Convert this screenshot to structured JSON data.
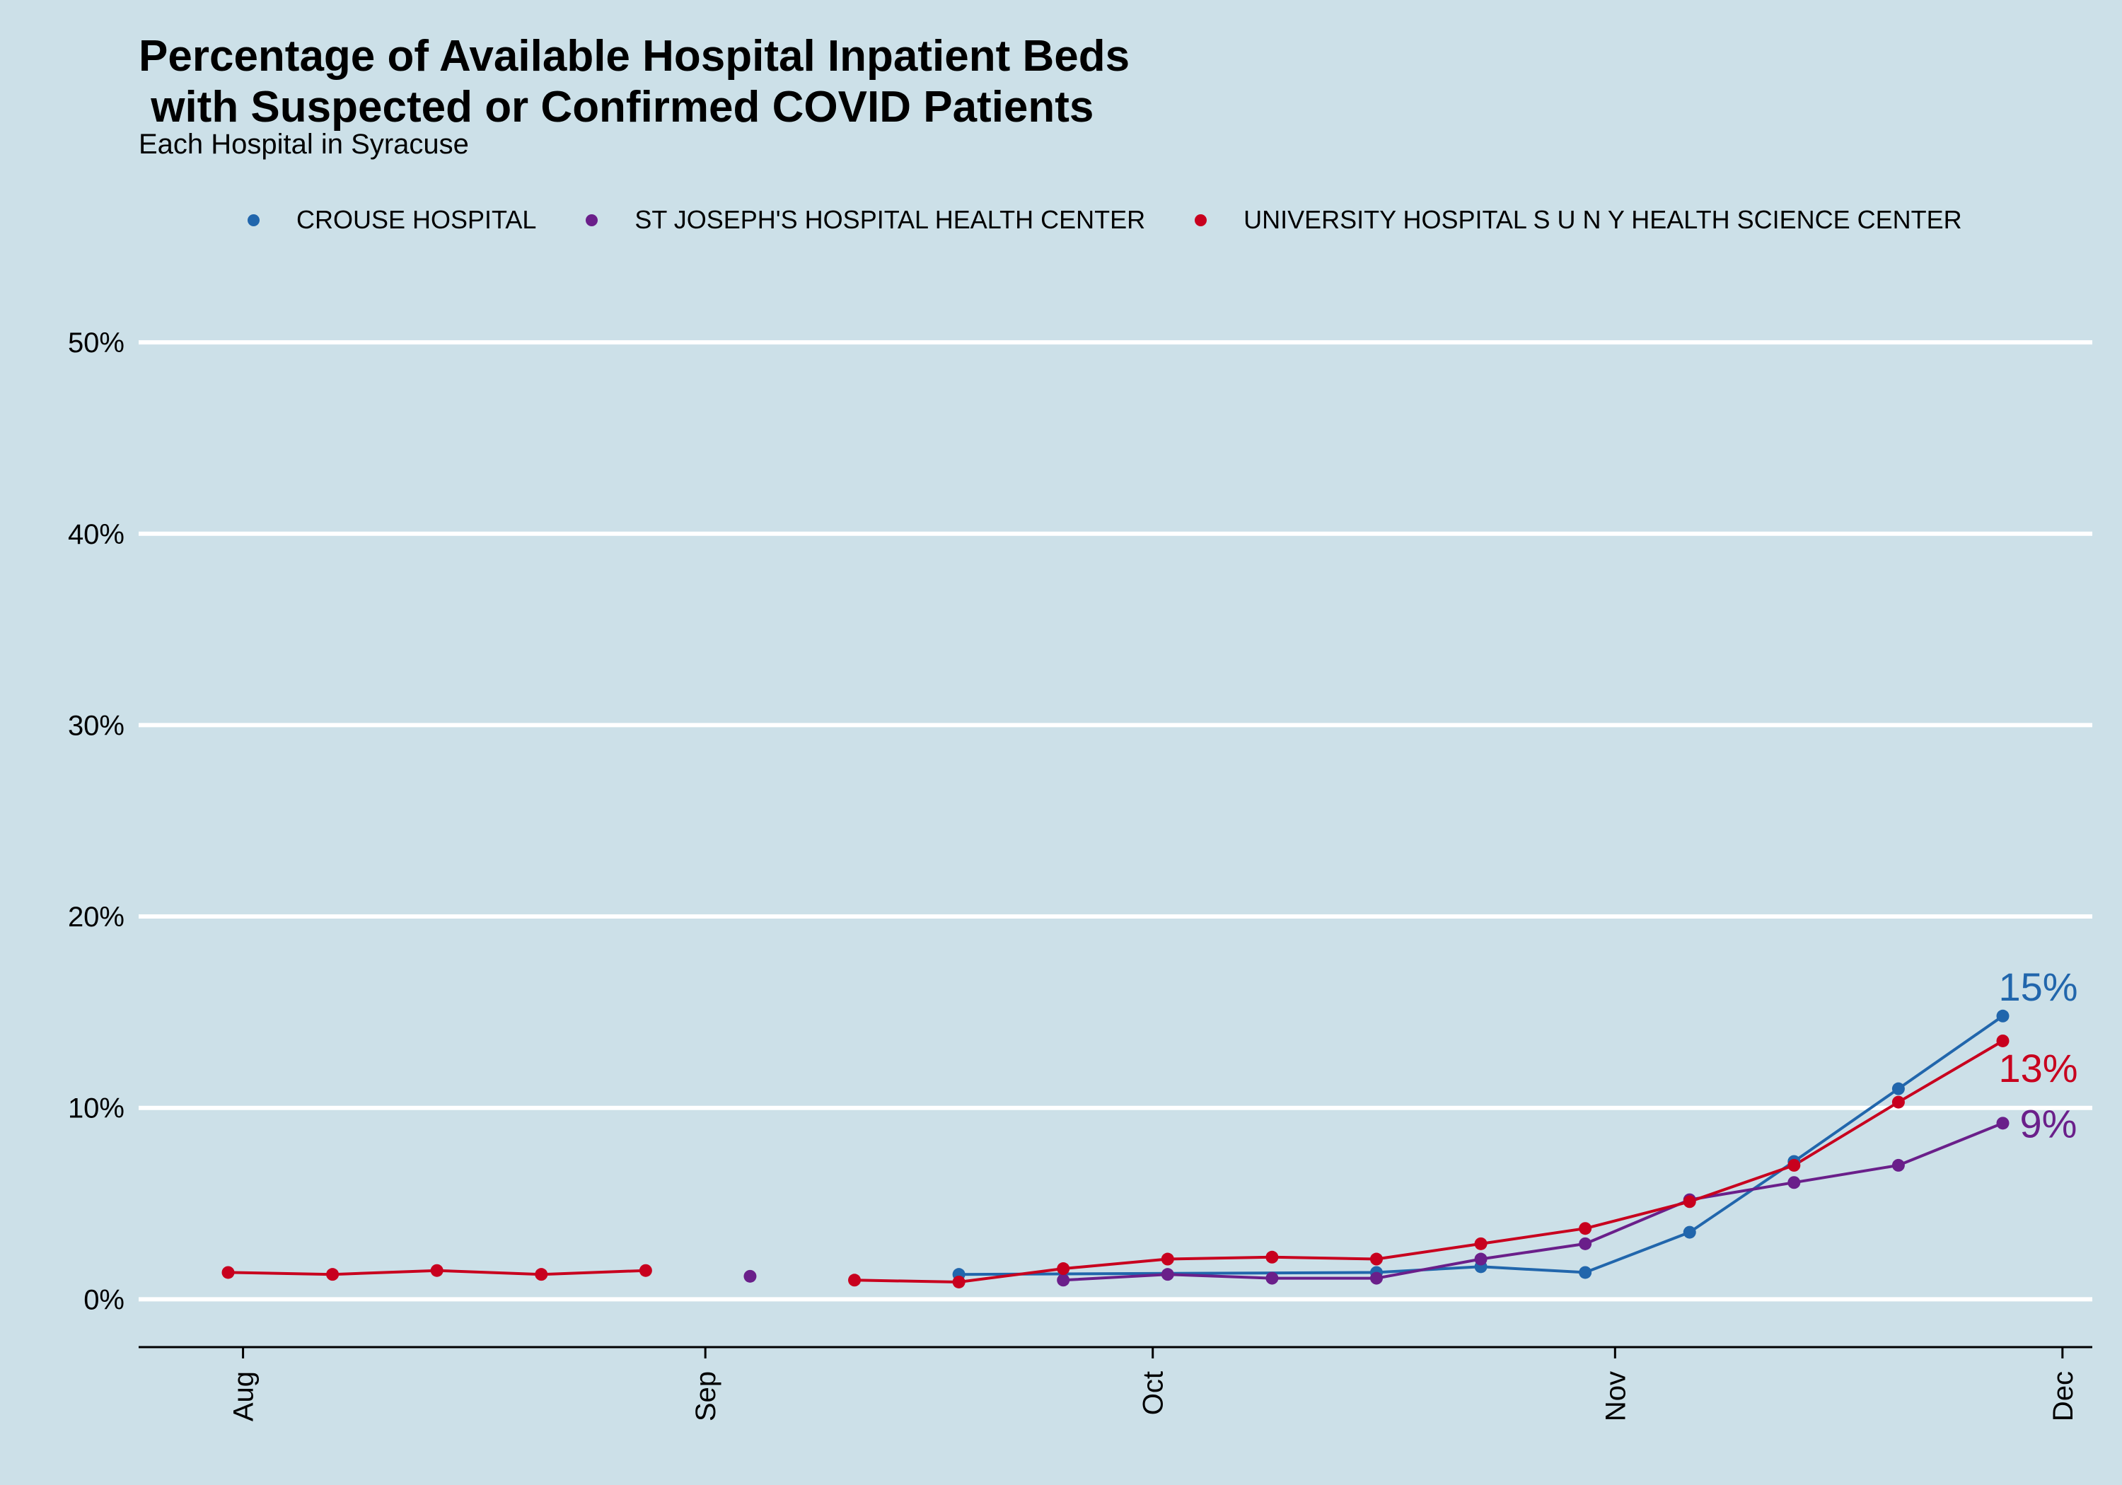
{
  "chart_data": {
    "type": "line",
    "title_lines": [
      "Percentage of Available Hospital Inpatient Beds",
      " with Suspected or Confirmed COVID Patients"
    ],
    "subtitle": "Each Hospital in Syracuse",
    "xlabel": "",
    "ylabel": "",
    "x_ticks": [
      {
        "label": "Aug",
        "date": "2020-08-01"
      },
      {
        "label": "Sep",
        "date": "2020-09-01"
      },
      {
        "label": "Oct",
        "date": "2020-10-01"
      },
      {
        "label": "Nov",
        "date": "2020-11-01"
      },
      {
        "label": "Dec",
        "date": "2020-12-01"
      }
    ],
    "x_range": [
      "2020-07-25",
      "2020-12-03"
    ],
    "y_ticks": [
      0,
      10,
      20,
      30,
      40,
      50
    ],
    "y_tick_labels": [
      "0%",
      "10%",
      "20%",
      "30%",
      "40%",
      "50%"
    ],
    "ylim": [
      -2.5,
      52
    ],
    "grid": "horizontal",
    "legend_position": "top",
    "series": [
      {
        "name": "CROUSE HOSPITAL",
        "color": "#2166ac",
        "end_label": "15%",
        "points": [
          {
            "date": "2020-09-18",
            "value": 1.3,
            "connect": false
          },
          {
            "date": "2020-10-16",
            "value": 1.4,
            "connect": true
          },
          {
            "date": "2020-10-23",
            "value": 1.7,
            "connect": true
          },
          {
            "date": "2020-10-30",
            "value": 1.4,
            "connect": true
          },
          {
            "date": "2020-11-06",
            "value": 3.5,
            "connect": true
          },
          {
            "date": "2020-11-13",
            "value": 7.2,
            "connect": true
          },
          {
            "date": "2020-11-20",
            "value": 11.0,
            "connect": true
          },
          {
            "date": "2020-11-27",
            "value": 14.8,
            "connect": true
          }
        ]
      },
      {
        "name": "ST JOSEPH'S HOSPITAL HEALTH CENTER",
        "color": "#6a1f8a",
        "end_label": "9%",
        "points": [
          {
            "date": "2020-09-04",
            "value": 1.2,
            "connect": false
          },
          {
            "date": "2020-09-25",
            "value": 1.0,
            "connect": false
          },
          {
            "date": "2020-10-02",
            "value": 1.3,
            "connect": true
          },
          {
            "date": "2020-10-09",
            "value": 1.1,
            "connect": true
          },
          {
            "date": "2020-10-16",
            "value": 1.1,
            "connect": true
          },
          {
            "date": "2020-10-23",
            "value": 2.1,
            "connect": true
          },
          {
            "date": "2020-10-30",
            "value": 2.9,
            "connect": true
          },
          {
            "date": "2020-11-06",
            "value": 5.2,
            "connect": true
          },
          {
            "date": "2020-11-13",
            "value": 6.1,
            "connect": true
          },
          {
            "date": "2020-11-20",
            "value": 7.0,
            "connect": true
          },
          {
            "date": "2020-11-27",
            "value": 9.2,
            "connect": true
          }
        ]
      },
      {
        "name": "UNIVERSITY HOSPITAL S U N Y HEALTH SCIENCE CENTER",
        "color": "#c8001e",
        "end_label": "13%",
        "points": [
          {
            "date": "2020-07-31",
            "value": 1.4,
            "connect": false
          },
          {
            "date": "2020-08-07",
            "value": 1.3,
            "connect": true
          },
          {
            "date": "2020-08-14",
            "value": 1.5,
            "connect": true
          },
          {
            "date": "2020-08-21",
            "value": 1.3,
            "connect": true
          },
          {
            "date": "2020-08-28",
            "value": 1.5,
            "connect": true
          },
          {
            "date": "2020-09-11",
            "value": 1.0,
            "connect": false
          },
          {
            "date": "2020-09-18",
            "value": 0.9,
            "connect": true
          },
          {
            "date": "2020-09-25",
            "value": 1.6,
            "connect": true
          },
          {
            "date": "2020-10-02",
            "value": 2.1,
            "connect": true
          },
          {
            "date": "2020-10-09",
            "value": 2.2,
            "connect": true
          },
          {
            "date": "2020-10-16",
            "value": 2.1,
            "connect": true
          },
          {
            "date": "2020-10-23",
            "value": 2.9,
            "connect": true
          },
          {
            "date": "2020-10-30",
            "value": 3.7,
            "connect": true
          },
          {
            "date": "2020-11-06",
            "value": 5.1,
            "connect": true
          },
          {
            "date": "2020-11-13",
            "value": 7.0,
            "connect": true
          },
          {
            "date": "2020-11-20",
            "value": 10.3,
            "connect": true
          },
          {
            "date": "2020-11-27",
            "value": 13.5,
            "connect": true
          }
        ]
      }
    ]
  },
  "colors": {
    "background": "#cce0e8",
    "grid": "#ffffff",
    "axis": "#000000"
  }
}
